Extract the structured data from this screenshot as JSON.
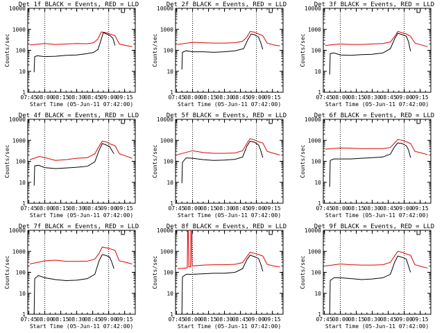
{
  "chart_data": {
    "type": "line",
    "layout": "3x3 grid",
    "y_scale": "log",
    "ylim": [
      1,
      10000
    ],
    "y_ticks": [
      "1",
      "10",
      "100",
      "1000",
      "10000"
    ],
    "ylabel": "Counts/sec",
    "x_ticks": [
      "07:45",
      "08:00",
      "08:15",
      "08:30",
      "08:45",
      "09:00",
      "09:15"
    ],
    "x_tick_minutes": [
      465,
      480,
      495,
      510,
      525,
      540,
      555
    ],
    "xlim_minutes": [
      464,
      565
    ],
    "xlabel": "Start Time (05-Jun-11 07:42:00)",
    "vertical_dotted_lines_minutes": [
      480,
      540
    ],
    "series_colors": {
      "events": "#000000",
      "lld": "#dd0000"
    },
    "panels": [
      {
        "title": "Det 1f BLACK = Events, RED = LLD",
        "events": [
          [
            470,
            9
          ],
          [
            470.5,
            50
          ],
          [
            473,
            55
          ],
          [
            480,
            50
          ],
          [
            490,
            52
          ],
          [
            500,
            58
          ],
          [
            510,
            60
          ],
          [
            520,
            70
          ],
          [
            526,
            80
          ],
          [
            530,
            110
          ],
          [
            533,
            330
          ],
          [
            535,
            700
          ],
          [
            538,
            600
          ],
          [
            541,
            520
          ],
          [
            544,
            370
          ],
          [
            546,
            170
          ]
        ],
        "lld": [
          [
            466,
            180
          ],
          [
            480,
            210
          ],
          [
            490,
            190
          ],
          [
            500,
            200
          ],
          [
            510,
            210
          ],
          [
            520,
            205
          ],
          [
            526,
            230
          ],
          [
            530,
            350
          ],
          [
            533,
            750
          ],
          [
            536,
            720
          ],
          [
            540,
            640
          ],
          [
            542,
            580
          ],
          [
            546,
            500
          ],
          [
            550,
            200
          ],
          [
            556,
            170
          ],
          [
            562,
            150
          ]
        ]
      },
      {
        "title": "Det 2f BLACK = Events, RED = LLD",
        "events": [
          [
            470,
            12
          ],
          [
            470.5,
            80
          ],
          [
            474,
            95
          ],
          [
            480,
            85
          ],
          [
            490,
            85
          ],
          [
            500,
            80
          ],
          [
            510,
            85
          ],
          [
            520,
            95
          ],
          [
            528,
            120
          ],
          [
            532,
            330
          ],
          [
            535,
            600
          ],
          [
            538,
            560
          ],
          [
            542,
            420
          ],
          [
            544,
            230
          ],
          [
            546,
            110
          ]
        ],
        "lld": [
          [
            466,
            190
          ],
          [
            480,
            240
          ],
          [
            490,
            230
          ],
          [
            500,
            220
          ],
          [
            510,
            220
          ],
          [
            520,
            230
          ],
          [
            527,
            270
          ],
          [
            531,
            420
          ],
          [
            534,
            780
          ],
          [
            538,
            740
          ],
          [
            542,
            600
          ],
          [
            546,
            500
          ],
          [
            550,
            220
          ],
          [
            556,
            180
          ],
          [
            562,
            160
          ]
        ]
      },
      {
        "title": "Det 3f BLACK = Events, RED = LLD",
        "events": [
          [
            470,
            7
          ],
          [
            470.5,
            70
          ],
          [
            474,
            75
          ],
          [
            480,
            60
          ],
          [
            490,
            58
          ],
          [
            500,
            62
          ],
          [
            510,
            65
          ],
          [
            520,
            75
          ],
          [
            527,
            120
          ],
          [
            531,
            350
          ],
          [
            534,
            650
          ],
          [
            538,
            560
          ],
          [
            542,
            470
          ],
          [
            544,
            260
          ],
          [
            546,
            90
          ]
        ],
        "lld": [
          [
            466,
            170
          ],
          [
            480,
            200
          ],
          [
            490,
            190
          ],
          [
            500,
            190
          ],
          [
            510,
            200
          ],
          [
            520,
            210
          ],
          [
            527,
            250
          ],
          [
            531,
            450
          ],
          [
            534,
            800
          ],
          [
            538,
            690
          ],
          [
            542,
            600
          ],
          [
            546,
            470
          ],
          [
            550,
            220
          ],
          [
            556,
            180
          ],
          [
            562,
            150
          ]
        ]
      },
      {
        "title": "Det 4f BLACK = Events, RED = LLD",
        "events": [
          [
            470,
            7
          ],
          [
            470.5,
            60
          ],
          [
            474,
            65
          ],
          [
            480,
            50
          ],
          [
            490,
            45
          ],
          [
            500,
            48
          ],
          [
            510,
            52
          ],
          [
            520,
            58
          ],
          [
            527,
            95
          ],
          [
            531,
            330
          ],
          [
            534,
            700
          ],
          [
            537,
            620
          ],
          [
            541,
            500
          ],
          [
            543,
            330
          ],
          [
            545,
            230
          ]
        ],
        "lld": [
          [
            466,
            120
          ],
          [
            475,
            170
          ],
          [
            480,
            150
          ],
          [
            490,
            110
          ],
          [
            500,
            120
          ],
          [
            510,
            140
          ],
          [
            520,
            150
          ],
          [
            527,
            230
          ],
          [
            531,
            520
          ],
          [
            534,
            900
          ],
          [
            538,
            830
          ],
          [
            542,
            650
          ],
          [
            546,
            560
          ],
          [
            550,
            230
          ],
          [
            556,
            180
          ],
          [
            562,
            140
          ]
        ]
      },
      {
        "title": "Det 5f BLACK = Events, RED = LLD",
        "events": [
          [
            470,
            9
          ],
          [
            470.5,
            90
          ],
          [
            474,
            145
          ],
          [
            480,
            140
          ],
          [
            490,
            120
          ],
          [
            500,
            110
          ],
          [
            510,
            115
          ],
          [
            520,
            125
          ],
          [
            527,
            160
          ],
          [
            531,
            520
          ],
          [
            534,
            900
          ],
          [
            538,
            820
          ],
          [
            542,
            600
          ],
          [
            544,
            330
          ],
          [
            546,
            150
          ]
        ],
        "lld": [
          [
            466,
            210
          ],
          [
            480,
            320
          ],
          [
            490,
            260
          ],
          [
            500,
            240
          ],
          [
            510,
            240
          ],
          [
            520,
            250
          ],
          [
            527,
            320
          ],
          [
            531,
            700
          ],
          [
            534,
            1200
          ],
          [
            538,
            1050
          ],
          [
            542,
            850
          ],
          [
            546,
            750
          ],
          [
            550,
            300
          ],
          [
            556,
            240
          ],
          [
            562,
            200
          ]
        ]
      },
      {
        "title": "Det 6f BLACK = Events, RED = LLD",
        "events": [
          [
            470,
            6
          ],
          [
            470.5,
            110
          ],
          [
            474,
            130
          ],
          [
            480,
            130
          ],
          [
            490,
            130
          ],
          [
            500,
            140
          ],
          [
            510,
            150
          ],
          [
            520,
            160
          ],
          [
            527,
            220
          ],
          [
            531,
            500
          ],
          [
            534,
            750
          ],
          [
            538,
            700
          ],
          [
            542,
            550
          ],
          [
            544,
            350
          ],
          [
            546,
            150
          ]
        ],
        "lld": [
          [
            466,
            380
          ],
          [
            480,
            430
          ],
          [
            490,
            420
          ],
          [
            500,
            400
          ],
          [
            510,
            400
          ],
          [
            520,
            400
          ],
          [
            527,
            450
          ],
          [
            531,
            750
          ],
          [
            534,
            1100
          ],
          [
            538,
            1000
          ],
          [
            542,
            850
          ],
          [
            546,
            700
          ],
          [
            550,
            300
          ],
          [
            556,
            250
          ],
          [
            562,
            210
          ]
        ]
      },
      {
        "title": "Det 7f BLACK = Events, RED = LLD",
        "events": [
          [
            470,
            1
          ],
          [
            470.5,
            50
          ],
          [
            474,
            70
          ],
          [
            480,
            55
          ],
          [
            490,
            45
          ],
          [
            500,
            40
          ],
          [
            510,
            42
          ],
          [
            520,
            50
          ],
          [
            527,
            80
          ],
          [
            531,
            350
          ],
          [
            534,
            700
          ],
          [
            538,
            620
          ],
          [
            541,
            520
          ],
          [
            543,
            300
          ],
          [
            545,
            150
          ]
        ],
        "lld": [
          [
            466,
            250
          ],
          [
            480,
            350
          ],
          [
            490,
            380
          ],
          [
            500,
            330
          ],
          [
            510,
            330
          ],
          [
            520,
            340
          ],
          [
            527,
            420
          ],
          [
            531,
            800
          ],
          [
            534,
            1600
          ],
          [
            538,
            1450
          ],
          [
            542,
            1300
          ],
          [
            546,
            1100
          ],
          [
            550,
            350
          ],
          [
            556,
            300
          ],
          [
            562,
            250
          ]
        ]
      },
      {
        "title": "Det 8f BLACK = Events, RED = LLD",
        "events": [
          [
            470,
            1
          ],
          [
            470.5,
            60
          ],
          [
            474,
            80
          ],
          [
            480,
            80
          ],
          [
            490,
            85
          ],
          [
            500,
            90
          ],
          [
            510,
            90
          ],
          [
            520,
            100
          ],
          [
            527,
            150
          ],
          [
            531,
            400
          ],
          [
            534,
            650
          ],
          [
            538,
            560
          ],
          [
            542,
            450
          ],
          [
            544,
            250
          ],
          [
            546,
            110
          ]
        ],
        "lld": [
          [
            466,
            150
          ],
          [
            475,
            160
          ],
          [
            475.5,
            10000
          ],
          [
            476,
            10000
          ],
          [
            476.5,
            180
          ],
          [
            478,
            180
          ],
          [
            478.5,
            10000
          ],
          [
            479,
            10000
          ],
          [
            479.5,
            200
          ],
          [
            490,
            220
          ],
          [
            500,
            230
          ],
          [
            510,
            230
          ],
          [
            520,
            240
          ],
          [
            527,
            290
          ],
          [
            531,
            550
          ],
          [
            534,
            900
          ],
          [
            538,
            800
          ],
          [
            542,
            700
          ],
          [
            546,
            600
          ],
          [
            550,
            240
          ],
          [
            556,
            200
          ],
          [
            562,
            180
          ]
        ]
      },
      {
        "title": "Det 9f BLACK = Events, RED = LLD",
        "events": [
          [
            470,
            1
          ],
          [
            470.5,
            40
          ],
          [
            474,
            55
          ],
          [
            480,
            55
          ],
          [
            490,
            50
          ],
          [
            500,
            45
          ],
          [
            510,
            48
          ],
          [
            520,
            55
          ],
          [
            527,
            80
          ],
          [
            531,
            300
          ],
          [
            534,
            600
          ],
          [
            538,
            520
          ],
          [
            542,
            420
          ],
          [
            544,
            200
          ],
          [
            546,
            100
          ]
        ],
        "lld": [
          [
            466,
            200
          ],
          [
            480,
            250
          ],
          [
            490,
            230
          ],
          [
            500,
            220
          ],
          [
            510,
            220
          ],
          [
            520,
            230
          ],
          [
            527,
            300
          ],
          [
            531,
            600
          ],
          [
            534,
            1000
          ],
          [
            538,
            900
          ],
          [
            542,
            750
          ],
          [
            546,
            650
          ],
          [
            550,
            230
          ],
          [
            556,
            190
          ],
          [
            562,
            160
          ]
        ]
      }
    ]
  }
}
